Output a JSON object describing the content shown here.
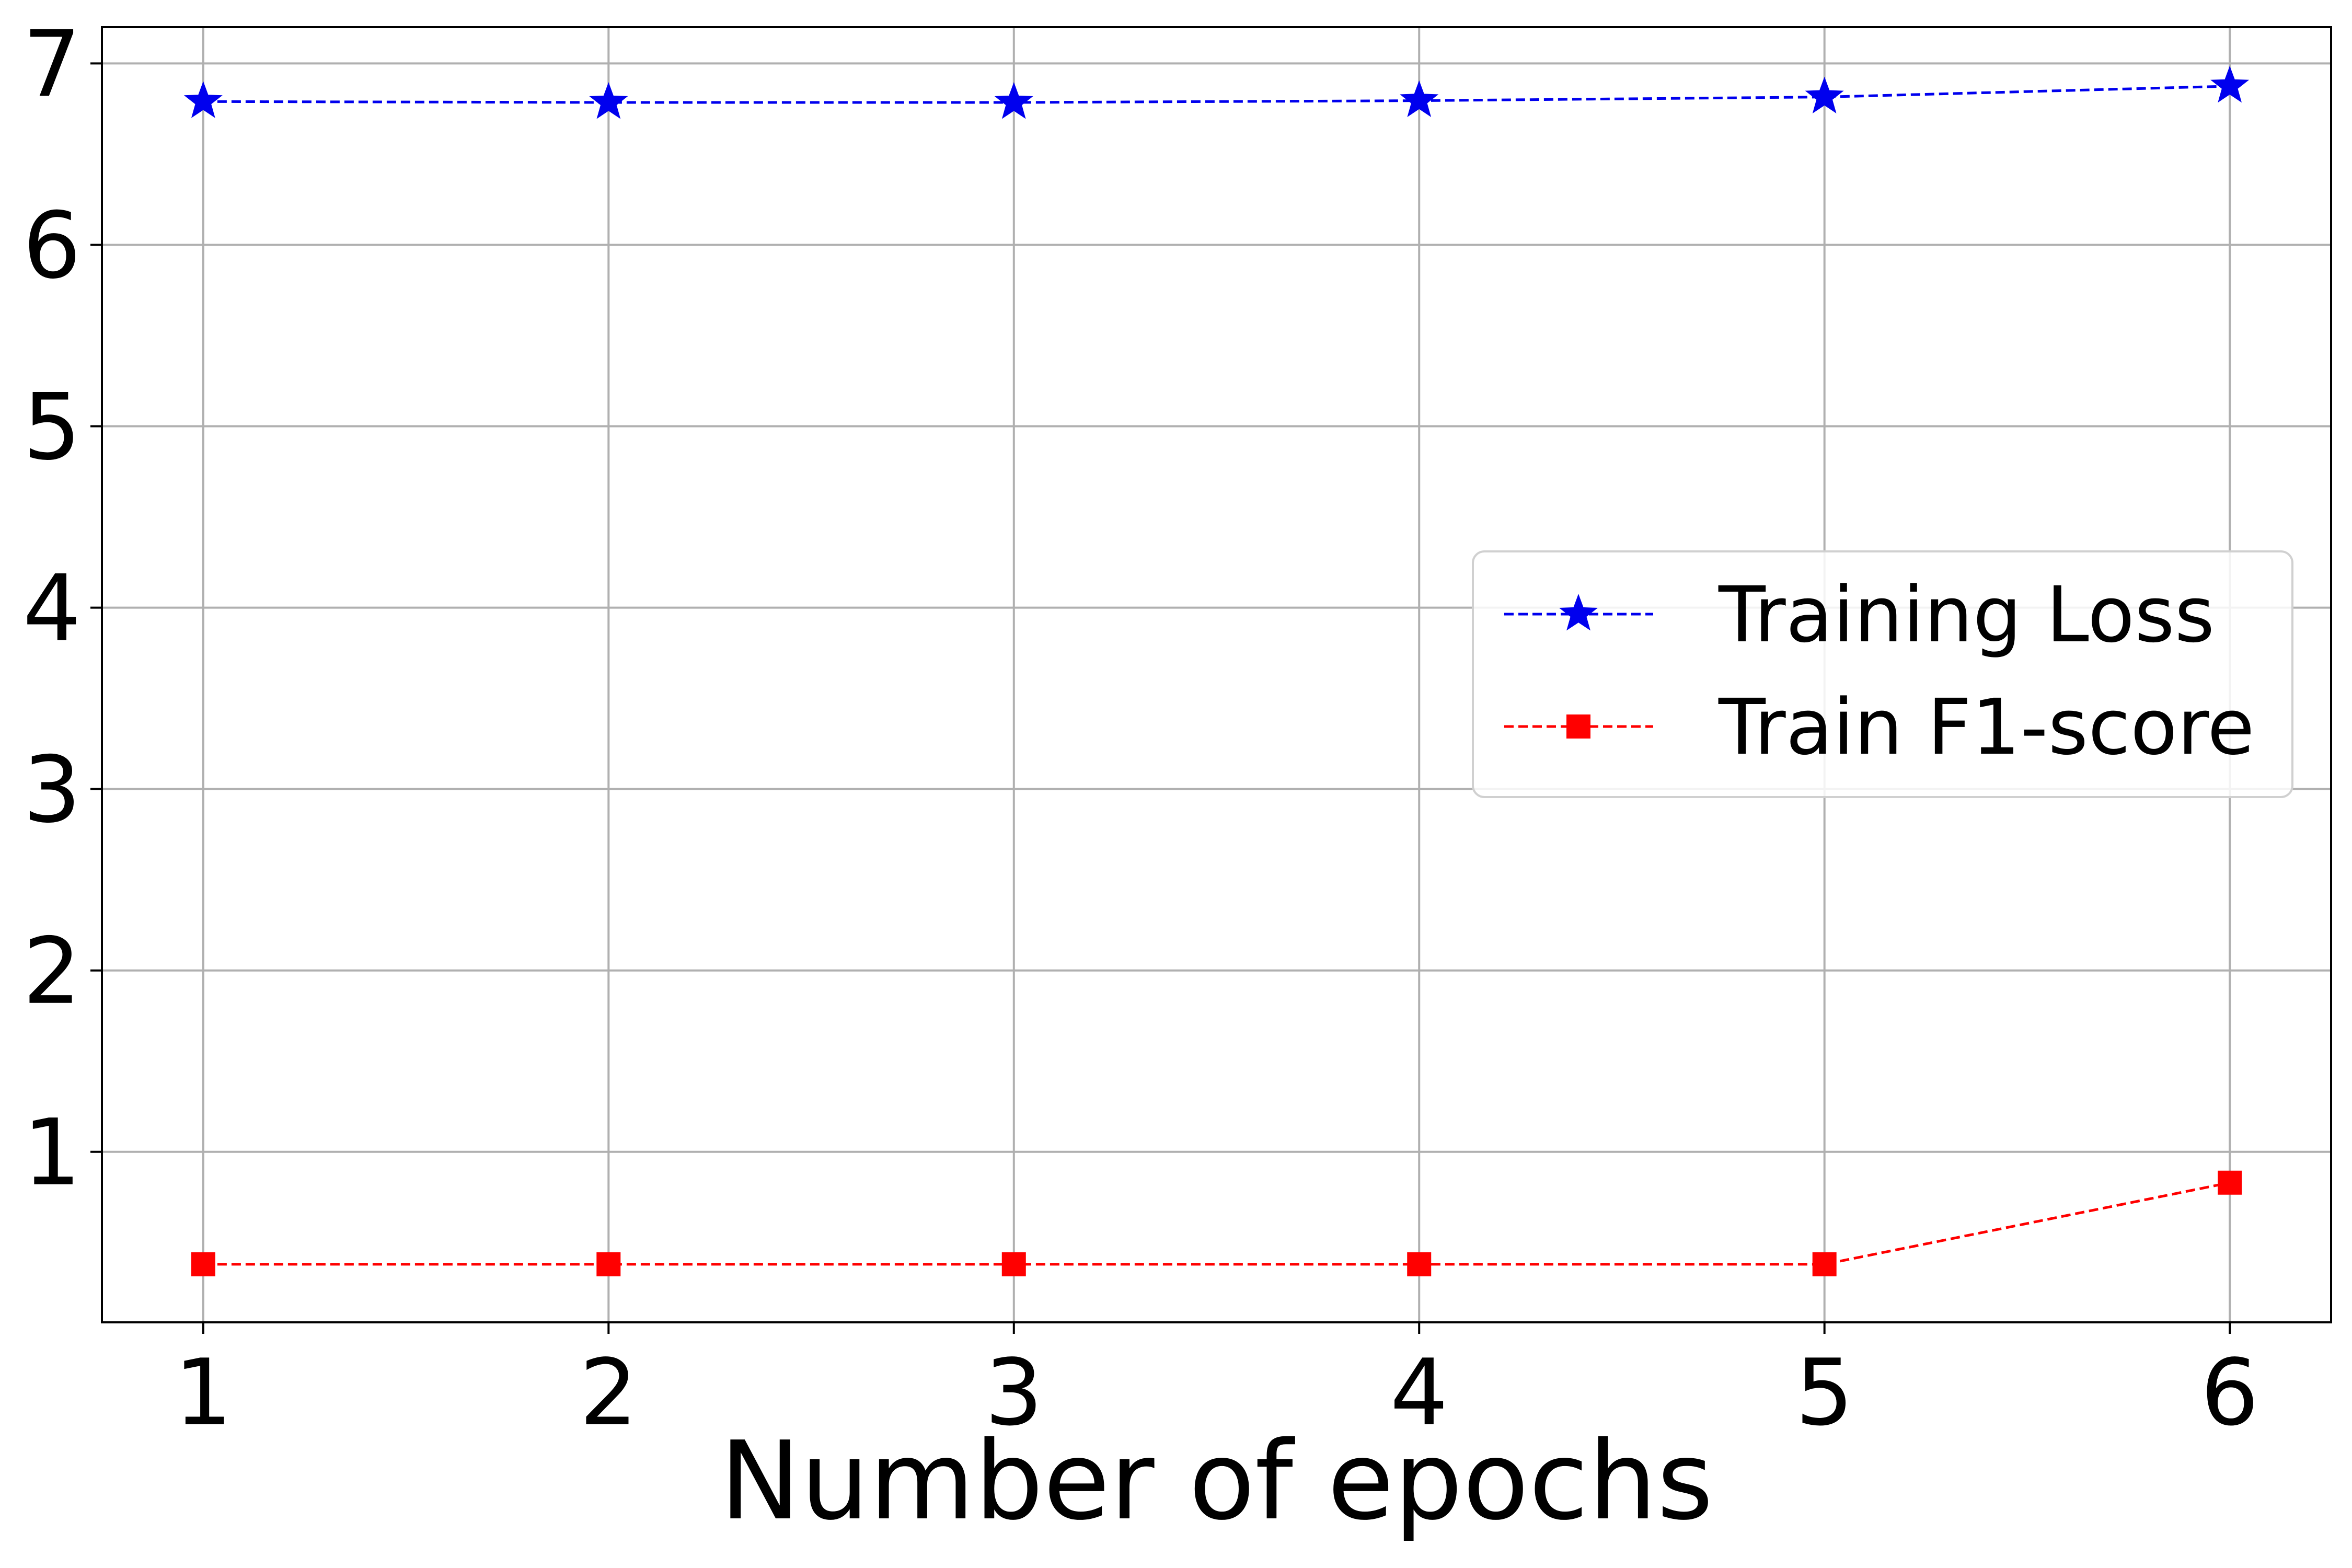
{
  "chart_data": {
    "type": "line",
    "title": "",
    "xlabel": "Number of epochs",
    "ylabel": "",
    "xlim": [
      0.75,
      6.25
    ],
    "ylim": [
      0.06,
      7.2
    ],
    "x_ticks": [
      1,
      2,
      3,
      4,
      5,
      6
    ],
    "y_ticks": [
      1,
      2,
      3,
      4,
      5,
      6,
      7
    ],
    "grid": true,
    "legend_position": "center-right",
    "series": [
      {
        "name": "Training Loss",
        "color": "#0000ee",
        "line_style": "dashed",
        "marker": "star",
        "x": [
          1,
          2,
          3,
          4,
          5,
          6
        ],
        "y": [
          6.79,
          6.785,
          6.785,
          6.795,
          6.815,
          6.875
        ]
      },
      {
        "name": "Train F1-score",
        "color": "#ff0000",
        "line_style": "dashed",
        "marker": "square",
        "x": [
          1,
          2,
          3,
          4,
          5,
          6
        ],
        "y": [
          0.38,
          0.38,
          0.38,
          0.38,
          0.38,
          0.83
        ]
      }
    ]
  }
}
